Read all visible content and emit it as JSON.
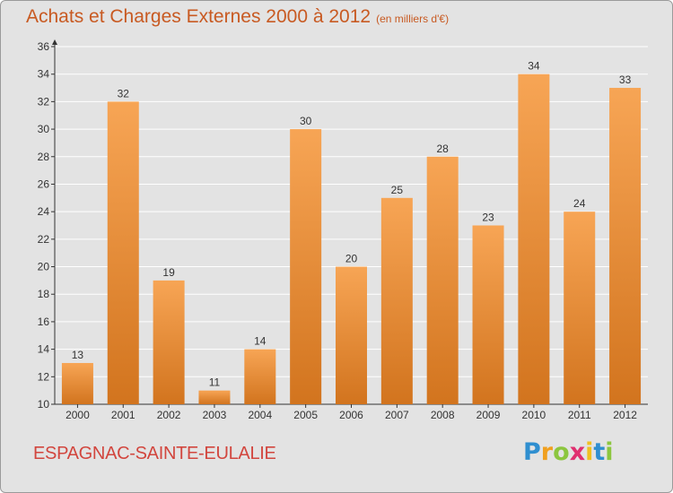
{
  "header": {
    "title": "Achats et Charges Externes 2000 à 2012",
    "unit": "(en milliers d'€)"
  },
  "footer": {
    "commune": "ESPAGNAC-SAINTE-EULALIE",
    "brand_letters": [
      "P",
      "r",
      "o",
      "x",
      "i",
      "t",
      "i"
    ],
    "brand_colors": [
      "#2f8fd0",
      "#f0a020",
      "#8cc63f",
      "#e03070",
      "#f0c020",
      "#2f8fd0",
      "#8cc63f"
    ]
  },
  "chart_data": {
    "type": "bar",
    "title": "Achats et Charges Externes 2000 à 2012",
    "subtitle": "(en milliers d'€)",
    "xlabel": "",
    "ylabel": "",
    "categories": [
      "2000",
      "2001",
      "2002",
      "2003",
      "2004",
      "2005",
      "2006",
      "2007",
      "2008",
      "2009",
      "2010",
      "2011",
      "2012"
    ],
    "values": [
      13,
      32,
      19,
      11,
      14,
      30,
      20,
      25,
      28,
      23,
      34,
      24,
      33
    ],
    "ylim": [
      10,
      36
    ],
    "yticks": [
      10,
      12,
      14,
      16,
      18,
      20,
      22,
      24,
      26,
      28,
      30,
      32,
      34,
      36
    ],
    "grid": true,
    "data_labels": true,
    "colors": {
      "bar_light": "#f7a555",
      "bar_dark": "#d2741e",
      "axis": "#333333",
      "grid": "#ffffff"
    }
  }
}
